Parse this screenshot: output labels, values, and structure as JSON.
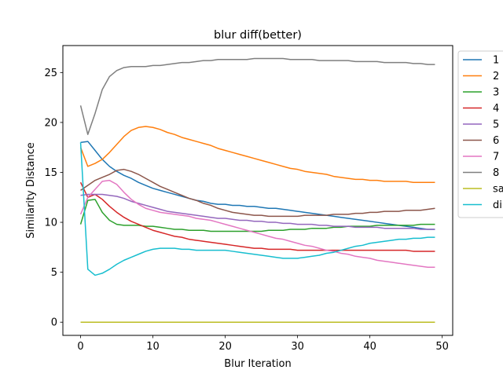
{
  "chart_data": {
    "type": "line",
    "title": "blur diff(better)",
    "xlabel": "Blur Iteration",
    "ylabel": "Similarity Distance",
    "xlim": [
      -2.45,
      51.45
    ],
    "ylim": [
      -1.32,
      27.7
    ],
    "xticks": [
      0,
      10,
      20,
      30,
      40,
      50
    ],
    "yticks": [
      0,
      5,
      10,
      15,
      20,
      25
    ],
    "grid": false,
    "legend_position": "outside right",
    "x": [
      0,
      1,
      2,
      3,
      4,
      5,
      6,
      7,
      8,
      9,
      10,
      11,
      12,
      13,
      14,
      15,
      16,
      17,
      18,
      19,
      20,
      21,
      22,
      23,
      24,
      25,
      26,
      27,
      28,
      29,
      30,
      31,
      32,
      33,
      34,
      35,
      36,
      37,
      38,
      39,
      40,
      41,
      42,
      43,
      44,
      45,
      46,
      47,
      48,
      49
    ],
    "series": [
      {
        "name": "1",
        "color": "#1f77b4",
        "values": [
          18.0,
          18.1,
          17.2,
          16.3,
          15.6,
          15.1,
          14.7,
          14.4,
          14.0,
          13.7,
          13.4,
          13.2,
          13.0,
          12.8,
          12.6,
          12.4,
          12.2,
          12.1,
          11.9,
          11.8,
          11.8,
          11.7,
          11.7,
          11.6,
          11.6,
          11.5,
          11.4,
          11.4,
          11.3,
          11.2,
          11.1,
          11.0,
          10.9,
          10.8,
          10.7,
          10.6,
          10.5,
          10.4,
          10.3,
          10.2,
          10.1,
          10.0,
          9.9,
          9.8,
          9.7,
          9.6,
          9.5,
          9.4,
          9.3,
          9.3
        ]
      },
      {
        "name": "2",
        "color": "#ff7f0e",
        "values": [
          17.5,
          15.6,
          15.9,
          16.3,
          17.0,
          17.8,
          18.6,
          19.2,
          19.5,
          19.6,
          19.5,
          19.3,
          19.0,
          18.8,
          18.5,
          18.3,
          18.1,
          17.9,
          17.7,
          17.4,
          17.2,
          17.0,
          16.8,
          16.6,
          16.4,
          16.2,
          16.0,
          15.8,
          15.6,
          15.4,
          15.3,
          15.1,
          15.0,
          14.9,
          14.8,
          14.6,
          14.5,
          14.4,
          14.3,
          14.3,
          14.2,
          14.2,
          14.1,
          14.1,
          14.1,
          14.1,
          14.0,
          14.0,
          14.0,
          14.0
        ]
      },
      {
        "name": "3",
        "color": "#2ca02c",
        "values": [
          9.8,
          12.2,
          12.3,
          11.0,
          10.2,
          9.8,
          9.7,
          9.7,
          9.7,
          9.6,
          9.6,
          9.5,
          9.4,
          9.3,
          9.3,
          9.2,
          9.2,
          9.2,
          9.1,
          9.1,
          9.1,
          9.1,
          9.1,
          9.1,
          9.1,
          9.1,
          9.2,
          9.2,
          9.2,
          9.3,
          9.3,
          9.3,
          9.4,
          9.4,
          9.4,
          9.5,
          9.5,
          9.6,
          9.6,
          9.6,
          9.6,
          9.7,
          9.7,
          9.7,
          9.7,
          9.7,
          9.7,
          9.8,
          9.8,
          9.8
        ]
      },
      {
        "name": "4",
        "color": "#d62728",
        "values": [
          14.0,
          12.5,
          12.8,
          12.3,
          11.6,
          11.0,
          10.5,
          10.1,
          9.8,
          9.5,
          9.2,
          9.0,
          8.8,
          8.6,
          8.5,
          8.3,
          8.2,
          8.1,
          8.0,
          7.9,
          7.8,
          7.7,
          7.6,
          7.5,
          7.4,
          7.4,
          7.3,
          7.3,
          7.3,
          7.3,
          7.2,
          7.2,
          7.2,
          7.2,
          7.2,
          7.2,
          7.2,
          7.2,
          7.2,
          7.2,
          7.2,
          7.2,
          7.2,
          7.2,
          7.2,
          7.2,
          7.1,
          7.1,
          7.1,
          7.1
        ]
      },
      {
        "name": "5",
        "color": "#9467bd",
        "values": [
          12.7,
          12.8,
          12.8,
          12.8,
          12.7,
          12.6,
          12.4,
          12.1,
          11.9,
          11.7,
          11.5,
          11.3,
          11.1,
          11.0,
          10.9,
          10.8,
          10.7,
          10.6,
          10.5,
          10.4,
          10.4,
          10.3,
          10.2,
          10.2,
          10.1,
          10.1,
          10.0,
          10.0,
          9.9,
          9.9,
          9.8,
          9.8,
          9.8,
          9.7,
          9.7,
          9.6,
          9.6,
          9.6,
          9.5,
          9.5,
          9.5,
          9.5,
          9.4,
          9.4,
          9.4,
          9.4,
          9.4,
          9.3,
          9.3,
          9.3
        ]
      },
      {
        "name": "6",
        "color": "#8c564b",
        "values": [
          13.2,
          13.7,
          14.2,
          14.5,
          14.8,
          15.2,
          15.3,
          15.1,
          14.8,
          14.4,
          14.0,
          13.6,
          13.3,
          13.0,
          12.7,
          12.4,
          12.2,
          11.9,
          11.7,
          11.4,
          11.2,
          11.0,
          10.9,
          10.8,
          10.7,
          10.7,
          10.6,
          10.6,
          10.6,
          10.6,
          10.6,
          10.7,
          10.7,
          10.7,
          10.7,
          10.8,
          10.8,
          10.8,
          10.9,
          10.9,
          11.0,
          11.0,
          11.1,
          11.1,
          11.1,
          11.2,
          11.2,
          11.2,
          11.3,
          11.4
        ]
      },
      {
        "name": "7",
        "color": "#e377c2",
        "values": [
          10.8,
          12.5,
          13.3,
          14.1,
          14.2,
          13.8,
          13.0,
          12.3,
          11.8,
          11.4,
          11.2,
          11.0,
          10.9,
          10.8,
          10.7,
          10.6,
          10.4,
          10.3,
          10.2,
          10.0,
          9.8,
          9.6,
          9.4,
          9.2,
          9.0,
          8.8,
          8.6,
          8.4,
          8.3,
          8.1,
          7.9,
          7.7,
          7.6,
          7.4,
          7.2,
          7.1,
          6.9,
          6.8,
          6.6,
          6.5,
          6.4,
          6.2,
          6.1,
          6.0,
          5.9,
          5.8,
          5.7,
          5.6,
          5.5,
          5.5
        ]
      },
      {
        "name": "8",
        "color": "#7f7f7f",
        "values": [
          21.7,
          18.8,
          20.9,
          23.3,
          24.6,
          25.2,
          25.5,
          25.6,
          25.6,
          25.6,
          25.7,
          25.7,
          25.8,
          25.9,
          26.0,
          26.0,
          26.1,
          26.2,
          26.2,
          26.3,
          26.3,
          26.3,
          26.3,
          26.3,
          26.4,
          26.4,
          26.4,
          26.4,
          26.4,
          26.3,
          26.3,
          26.3,
          26.3,
          26.2,
          26.2,
          26.2,
          26.2,
          26.2,
          26.1,
          26.1,
          26.1,
          26.1,
          26.0,
          26.0,
          26.0,
          26.0,
          25.9,
          25.9,
          25.8,
          25.8
        ]
      },
      {
        "name": "sa",
        "color": "#bcbd22",
        "values": [
          0,
          0,
          0,
          0,
          0,
          0,
          0,
          0,
          0,
          0,
          0,
          0,
          0,
          0,
          0,
          0,
          0,
          0,
          0,
          0,
          0,
          0,
          0,
          0,
          0,
          0,
          0,
          0,
          0,
          0,
          0,
          0,
          0,
          0,
          0,
          0,
          0,
          0,
          0,
          0,
          0,
          0,
          0,
          0,
          0,
          0,
          0,
          0,
          0,
          0
        ]
      },
      {
        "name": "di",
        "color": "#17becf",
        "values": [
          18.0,
          5.3,
          4.7,
          4.9,
          5.3,
          5.8,
          6.2,
          6.5,
          6.8,
          7.1,
          7.3,
          7.4,
          7.4,
          7.4,
          7.3,
          7.3,
          7.2,
          7.2,
          7.2,
          7.2,
          7.2,
          7.1,
          7.0,
          6.9,
          6.8,
          6.7,
          6.6,
          6.5,
          6.4,
          6.4,
          6.4,
          6.5,
          6.6,
          6.7,
          6.9,
          7.0,
          7.2,
          7.4,
          7.6,
          7.7,
          7.9,
          8.0,
          8.1,
          8.2,
          8.3,
          8.3,
          8.4,
          8.4,
          8.5,
          8.5
        ]
      }
    ]
  }
}
